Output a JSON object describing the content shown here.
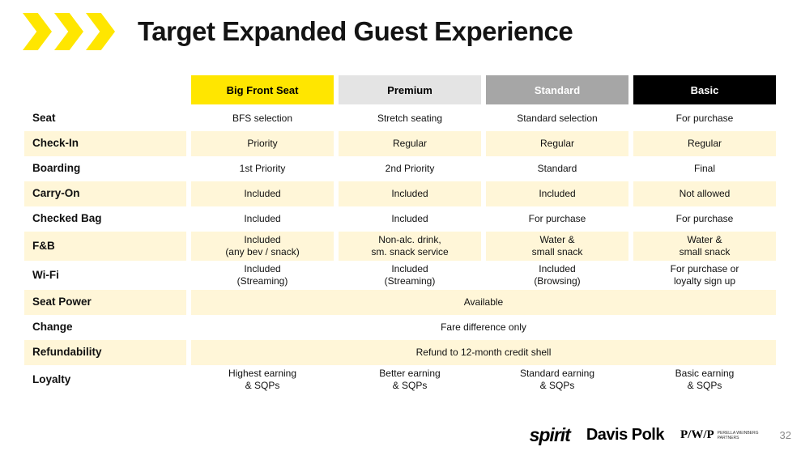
{
  "slide": {
    "title": "Target Expanded Guest Experience",
    "page_number": "32"
  },
  "colors": {
    "brand_yellow": "#FFE600",
    "stripe_row": "#FFF6D8",
    "header_big_front_seat_bg": "#FFE600",
    "header_premium_bg": "#E4E4E4",
    "header_standard_bg": "#A6A6A6",
    "header_basic_bg": "#000000"
  },
  "table": {
    "columns": [
      {
        "label": "Big Front Seat",
        "bg": "#FFE600",
        "color": "#000000"
      },
      {
        "label": "Premium",
        "bg": "#E4E4E4",
        "color": "#000000"
      },
      {
        "label": "Standard",
        "bg": "#A6A6A6",
        "color": "#FFFFFF"
      },
      {
        "label": "Basic",
        "bg": "#000000",
        "color": "#FFFFFF"
      }
    ],
    "rows": [
      {
        "label": "Seat",
        "cells": [
          "BFS selection",
          "Stretch seating",
          "Standard selection",
          "For purchase"
        ]
      },
      {
        "label": "Check-In",
        "cells": [
          "Priority",
          "Regular",
          "Regular",
          "Regular"
        ]
      },
      {
        "label": "Boarding",
        "cells": [
          "1st Priority",
          "2nd Priority",
          "Standard",
          "Final"
        ]
      },
      {
        "label": "Carry-On",
        "cells": [
          "Included",
          "Included",
          "Included",
          "Not allowed"
        ]
      },
      {
        "label": "Checked Bag",
        "cells": [
          "Included",
          "Included",
          "For purchase",
          "For purchase"
        ]
      },
      {
        "label": "F&B",
        "cells": [
          "Included\n(any bev / snack)",
          "Non-alc. drink,\nsm. snack service",
          "Water &\nsmall snack",
          "Water &\nsmall snack"
        ]
      },
      {
        "label": "Wi-Fi",
        "cells": [
          "Included\n(Streaming)",
          "Included\n(Streaming)",
          "Included\n(Browsing)",
          "For purchase or\nloyalty sign up"
        ]
      },
      {
        "label": "Seat Power",
        "span": "Available"
      },
      {
        "label": "Change",
        "span": "Fare difference only"
      },
      {
        "label": "Refundability",
        "span": "Refund to 12-month credit shell"
      },
      {
        "label": "Loyalty",
        "cells": [
          "Highest earning\n& SQPs",
          "Better earning\n& SQPs",
          "Standard earning\n& SQPs",
          "Basic earning\n& SQPs"
        ]
      }
    ]
  },
  "footer": {
    "spirit": "spirit",
    "davis_polk": "Davis Polk",
    "pwp": "P/W/P",
    "pwp_sub": "PERELLA WEINBERG\nPARTNERS"
  }
}
